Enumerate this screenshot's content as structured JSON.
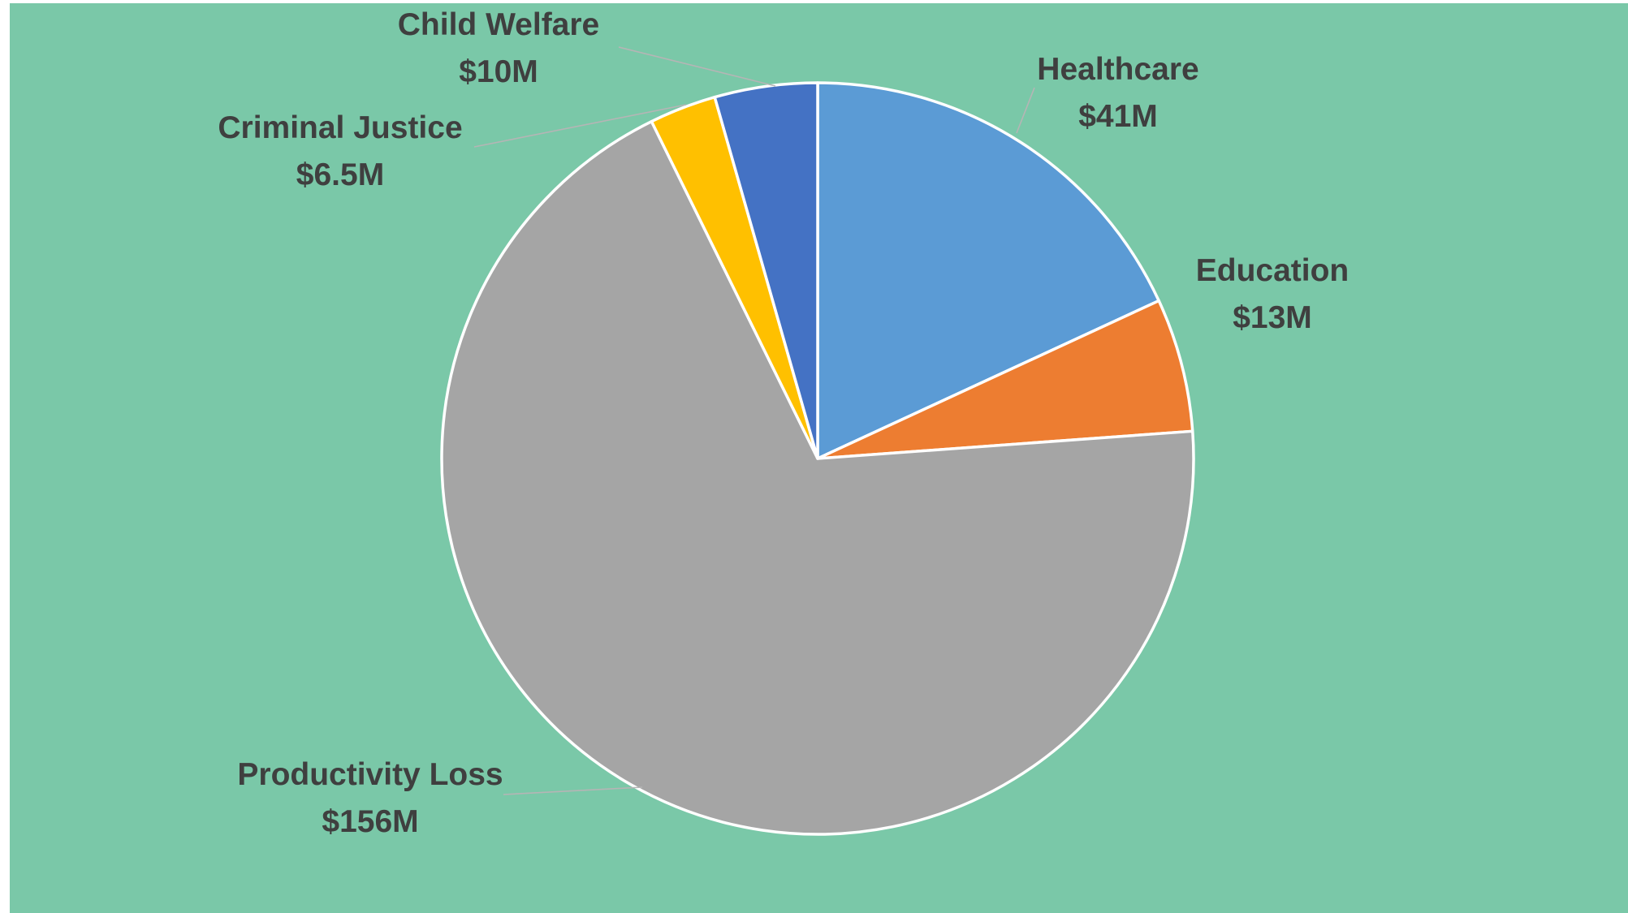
{
  "chart_data": {
    "type": "pie",
    "title": "",
    "categories": [
      "Healthcare",
      "Education",
      "Productivity Loss",
      "Criminal Justice",
      "Child Welfare"
    ],
    "values": [
      41,
      13,
      156,
      6.5,
      10
    ],
    "value_labels": [
      "$41M",
      "$13M",
      "$156M",
      "$6.5M",
      "$10M"
    ],
    "colors": [
      "#5B9BD5",
      "#ED7D31",
      "#A5A5A5",
      "#FFC000",
      "#4472C4"
    ],
    "start_angle_deg": 0,
    "direction": "clockwise",
    "legend": "none",
    "data_labels": "outside with leader lines"
  },
  "background_color": "#7AC8A8"
}
